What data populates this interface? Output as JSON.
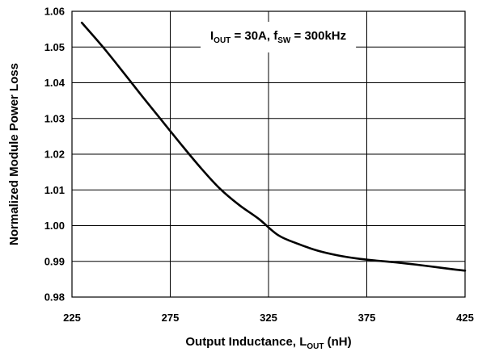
{
  "chart_data": {
    "type": "line",
    "xlabel": {
      "main": "Output Inductance, L",
      "sub": "OUT",
      "suffix": " (nH)"
    },
    "ylabel": "Normalized Module Power Loss",
    "xlim": [
      225,
      425
    ],
    "ylim": [
      0.98,
      1.06
    ],
    "x_ticks": [
      "225",
      "275",
      "325",
      "375",
      "425"
    ],
    "y_ticks": [
      "0.98",
      "0.99",
      "1.00",
      "1.01",
      "1.02",
      "1.03",
      "1.04",
      "1.05",
      "1.06"
    ],
    "grid": true,
    "annotation": {
      "parts": [
        {
          "text": "I",
          "sub": false
        },
        {
          "text": "OUT",
          "sub": true
        },
        {
          "text": " = 30A, f",
          "sub": false
        },
        {
          "text": "SW",
          "sub": true
        },
        {
          "text": " = 300kHz",
          "sub": false
        }
      ],
      "placement": "top-right"
    },
    "series": [
      {
        "color": "#000000",
        "x": [
          230,
          240,
          250,
          260,
          270,
          280,
          290,
          300,
          310,
          320,
          330,
          340,
          350,
          360,
          370,
          380,
          390,
          400,
          410,
          420,
          425
        ],
        "y": [
          1.0568,
          1.0505,
          1.0437,
          1.0367,
          1.0299,
          1.0231,
          1.0165,
          1.0105,
          1.0058,
          1.0019,
          0.9973,
          0.9949,
          0.993,
          0.9917,
          0.9908,
          0.9902,
          0.9897,
          0.9891,
          0.9884,
          0.9877,
          0.9874
        ]
      }
    ]
  }
}
